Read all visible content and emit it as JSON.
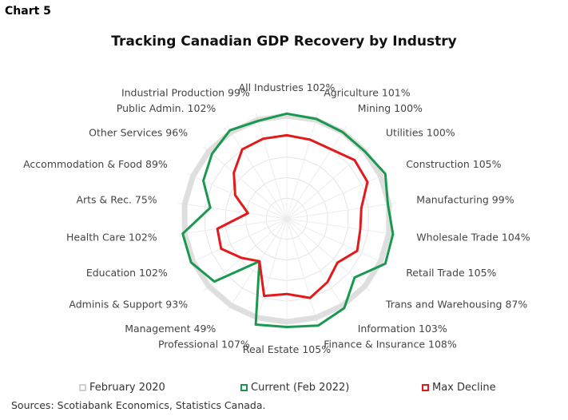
{
  "header": {
    "chart_number": "Chart 5"
  },
  "chart_data": {
    "type": "radar",
    "title": "Tracking Canadian GDP Recovery by Industry",
    "categories": [
      "All Industries 102%",
      "Agriculture 101%",
      "Mining 100%",
      "Utilities 100%",
      "Construction 105%",
      "Manufacturing 99%",
      "Wholesale Trade 104%",
      "Retail Trade 105%",
      "Trans and Warehousing 87%",
      "Information 103%",
      "Finance & Insurance 108%",
      "Real Estate 105%",
      "Professional 107%",
      "Management 49%",
      "Adminis & Support 93%",
      "Education 102%",
      "Health Care 102%",
      "Arts & Rec. 75%",
      "Accommodation & Food 89%",
      "Other Services 96%",
      "Public Admin. 102%",
      "Industrial Production 99%"
    ],
    "series": [
      {
        "name": "February 2020",
        "color": "#dcdcdc",
        "values": [
          100,
          100,
          100,
          100,
          100,
          100,
          100,
          100,
          100,
          100,
          100,
          100,
          100,
          100,
          100,
          100,
          100,
          100,
          100,
          100,
          100,
          100
        ]
      },
      {
        "name": "Current (Feb 2022)",
        "color": "#1a9850",
        "values": [
          102,
          101,
          100,
          100,
          105,
          99,
          104,
          105,
          87,
          103,
          108,
          105,
          107,
          49,
          93,
          102,
          102,
          75,
          89,
          96,
          102,
          99
        ]
      },
      {
        "name": "Max Decline",
        "color": "#e3191c",
        "values": [
          81,
          80,
          80,
          87,
          86,
          73,
          72,
          75,
          65,
          73,
          80,
          73,
          78,
          49,
          58,
          70,
          68,
          38,
          55,
          68,
          80,
          81
        ]
      }
    ],
    "rmin": 0,
    "rmax": 110,
    "grid_rings": [
      20,
      40,
      60,
      80,
      100
    ],
    "legend_position": "bottom"
  },
  "legend": {
    "items": [
      {
        "label": "February 2020",
        "color": "#d0d0d0"
      },
      {
        "label": "Current (Feb 2022)",
        "color": "#1a9850"
      },
      {
        "label": "Max Decline",
        "color": "#e3191c"
      }
    ]
  },
  "footer": {
    "source": "Sources: Scotiabank Economics, Statistics Canada."
  }
}
